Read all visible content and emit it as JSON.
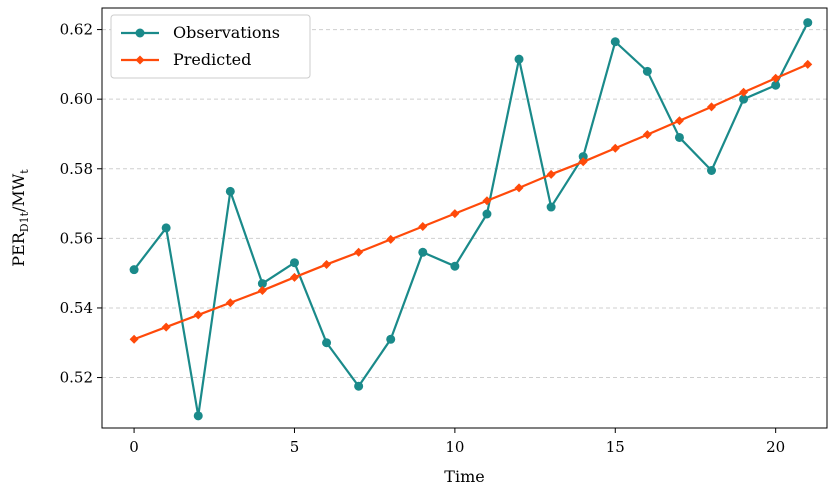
{
  "chart_data": {
    "type": "line",
    "title": "",
    "xlabel": "Time",
    "ylabel": {
      "main": "PER",
      "sub1": "D1t",
      "mid": "/MW",
      "sub2": "t"
    },
    "xlim": [
      -1,
      21.6
    ],
    "ylim": [
      0.5055,
      0.6262
    ],
    "xticks": [
      0,
      5,
      10,
      15,
      20
    ],
    "yticks": [
      0.52,
      0.54,
      0.56,
      0.58,
      0.6,
      0.62
    ],
    "ytick_labels": [
      "0.52",
      "0.54",
      "0.56",
      "0.58",
      "0.60",
      "0.62"
    ],
    "grid": {
      "y": true,
      "x": false,
      "style": "dashed"
    },
    "legend_position": "top-left",
    "x": [
      0,
      1,
      2,
      3,
      4,
      5,
      6,
      7,
      8,
      9,
      10,
      11,
      12,
      13,
      14,
      15,
      16,
      17,
      18,
      19,
      20,
      21
    ],
    "series": [
      {
        "name": "Observations",
        "color": "#1a8a8a",
        "marker": "circle",
        "values": [
          0.551,
          0.563,
          0.509,
          0.5735,
          0.547,
          0.553,
          0.53,
          0.5175,
          0.531,
          0.556,
          0.552,
          0.567,
          0.6115,
          0.569,
          0.5835,
          0.6165,
          0.608,
          0.589,
          0.5795,
          0.6,
          0.604,
          0.622
        ]
      },
      {
        "name": "Predicted",
        "color": "#ff4a0a",
        "marker": "diamond",
        "values": [
          0.531,
          0.5345,
          0.538,
          0.5415,
          0.545,
          0.5488,
          0.5525,
          0.556,
          0.5597,
          0.5634,
          0.5671,
          0.5708,
          0.5745,
          0.5784,
          0.582,
          0.5859,
          0.5898,
          0.5938,
          0.5978,
          0.602,
          0.606,
          0.61
        ]
      }
    ]
  }
}
